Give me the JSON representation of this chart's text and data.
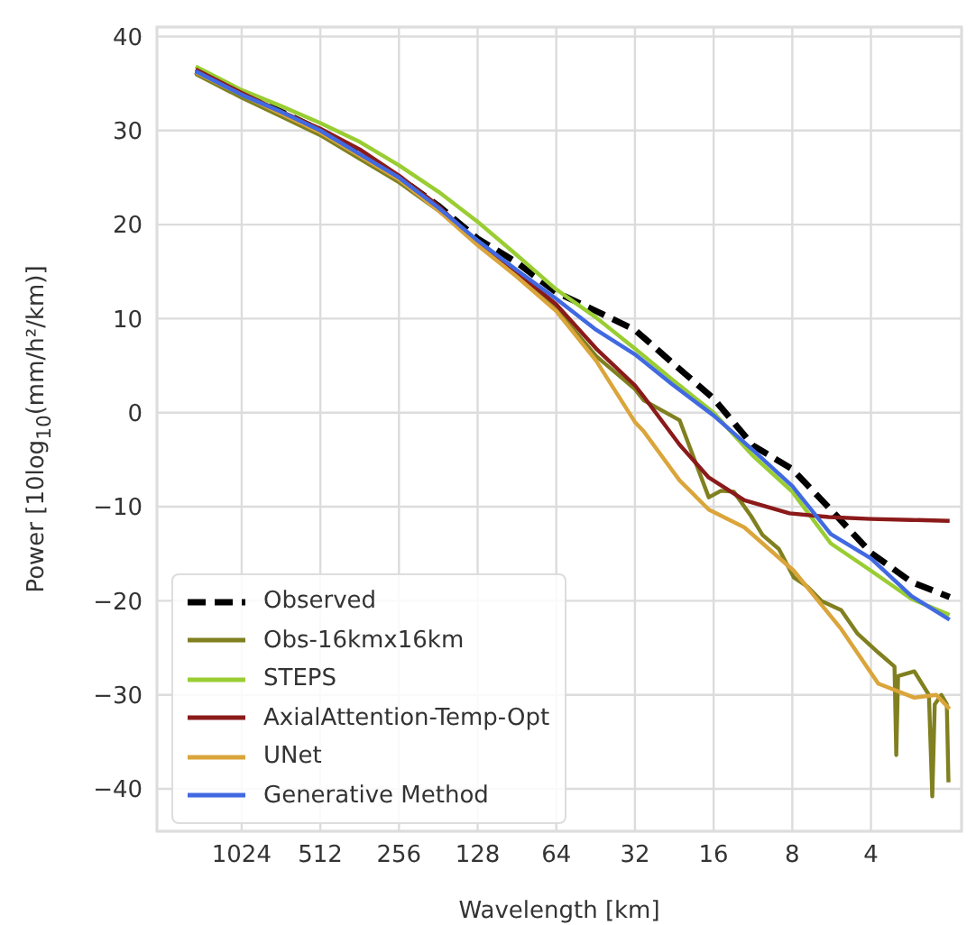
{
  "chart_data": {
    "type": "line",
    "xlabel": "Wavelength [km]",
    "ylabel": "Power [10log$_{10}$(mm/h²/km)]",
    "log": "x",
    "xlim": [
      2160,
      1.8
    ],
    "xticks": [
      1024,
      512,
      256,
      128,
      64,
      32,
      16,
      8,
      4
    ],
    "ylim": [
      -44.5,
      41
    ],
    "yticks": [
      -40,
      -30,
      -20,
      -10,
      0,
      10,
      20,
      30,
      40
    ],
    "grid": true,
    "legend": "bottom left",
    "marker": "none",
    "series": [
      {
        "name": "Observed",
        "color": "#000000",
        "line_style": "dashed",
        "x": [
          1536,
          1024,
          724,
          512,
          362,
          256,
          181,
          128,
          91,
          64,
          45,
          32,
          23,
          16,
          11.3,
          8,
          5.7,
          4,
          2.8,
          2
        ],
        "values": [
          36.3,
          34,
          32,
          30,
          27.5,
          25,
          22,
          18.5,
          16,
          12.8,
          10.8,
          8.8,
          5.3,
          1.5,
          -3.5,
          -6,
          -10.3,
          -14.9,
          -18,
          -19.6
        ]
      },
      {
        "name": "Obs-16kmx16km",
        "color": "#808020",
        "line_style": "solid",
        "x": [
          1536,
          1024,
          724,
          512,
          362,
          256,
          181,
          128,
          91,
          64,
          45,
          32,
          29.6,
          21.6,
          16.7,
          15,
          13.4,
          11.5,
          10.4,
          9,
          7.9,
          7,
          6.2,
          5.2,
          4.5,
          3.75,
          3.25,
          3.2,
          3.15,
          2.73,
          2.4,
          2.33,
          2.28,
          2.15,
          2.05,
          2.02
        ],
        "values": [
          36,
          33.5,
          31.5,
          29.5,
          27,
          24.5,
          21.5,
          18,
          14.8,
          11,
          6,
          2.5,
          1.3,
          -0.8,
          -9,
          -8.3,
          -8.4,
          -11,
          -13,
          -14.5,
          -17.5,
          -18.5,
          -20,
          -21,
          -23.5,
          -25.5,
          -27,
          -36.4,
          -28,
          -27.5,
          -30,
          -40.8,
          -31,
          -30,
          -31,
          -39.3
        ]
      },
      {
        "name": "STEPS",
        "color": "#9acd32",
        "line_style": "solid",
        "x": [
          1536,
          1024,
          724,
          512,
          362,
          256,
          181,
          128,
          91,
          64,
          45,
          32,
          23,
          16,
          11.3,
          8,
          5.7,
          4,
          2.8,
          2
        ],
        "values": [
          36.8,
          34.3,
          32.6,
          30.8,
          28.8,
          26.3,
          23.5,
          20.3,
          16.8,
          13.1,
          10.1,
          6.8,
          3.5,
          0,
          -4.6,
          -8.4,
          -13.9,
          -16.8,
          -19.8,
          -21.5
        ]
      },
      {
        "name": "AxialAttention-Temp-Opt",
        "color": "#8b1a1a",
        "line_style": "solid",
        "x": [
          1536,
          1024,
          724,
          512,
          362,
          256,
          181,
          128,
          91,
          64,
          45,
          32,
          29.6,
          21.6,
          16.7,
          12.2,
          8.2,
          5.8,
          4,
          2.8,
          2
        ],
        "values": [
          36.5,
          34,
          32,
          30.2,
          28,
          25.2,
          22,
          18,
          15,
          11.5,
          6.8,
          2.9,
          1.7,
          -3.4,
          -6.9,
          -9.3,
          -10.7,
          -11.1,
          -11.3,
          -11.4,
          -11.5
        ]
      },
      {
        "name": "UNet",
        "color": "#daa53a",
        "line_style": "solid",
        "x": [
          1536,
          1024,
          724,
          512,
          362,
          256,
          181,
          128,
          91,
          64,
          45,
          32,
          29.6,
          21.6,
          16.7,
          12.2,
          7.9,
          5.2,
          3.75,
          2.73,
          2.25,
          2
        ],
        "values": [
          36.2,
          33.8,
          31.8,
          29.8,
          27.3,
          24.8,
          21.5,
          17.8,
          14.5,
          10.8,
          5.5,
          -1,
          -2,
          -7.2,
          -10.3,
          -12.2,
          -16.8,
          -23,
          -28.8,
          -30.3,
          -30,
          -31.5
        ]
      },
      {
        "name": "Generative Method",
        "color": "#4169e1",
        "line_style": "solid",
        "x": [
          1536,
          1024,
          724,
          512,
          362,
          256,
          181,
          128,
          91,
          64,
          45,
          32,
          23,
          16,
          11.3,
          8,
          5.7,
          4,
          2.8,
          2
        ],
        "values": [
          36.3,
          33.8,
          32,
          30,
          27.5,
          25,
          21.8,
          18.3,
          15.2,
          12.1,
          8.8,
          6.2,
          3,
          -0.3,
          -4,
          -7.8,
          -12.9,
          -15.5,
          -19.5,
          -22
        ]
      }
    ]
  }
}
